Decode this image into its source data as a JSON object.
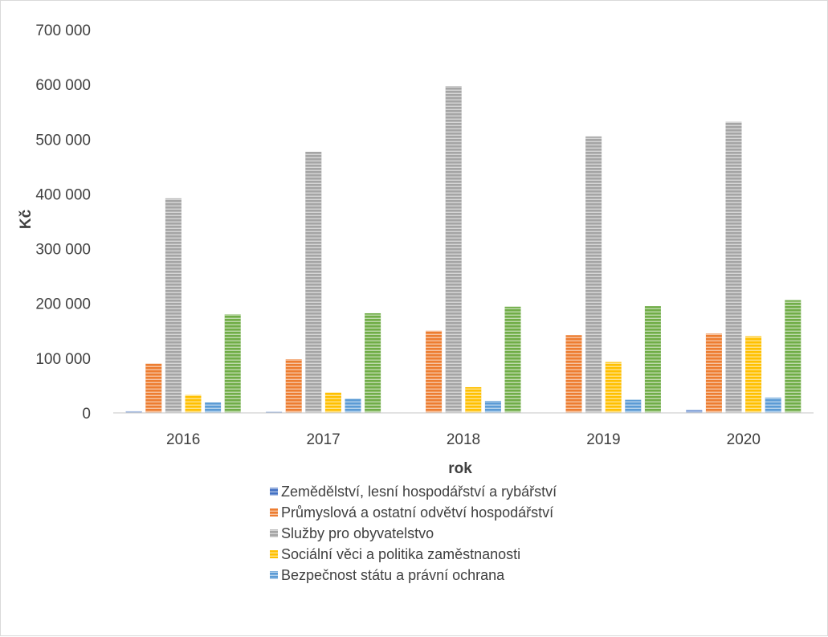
{
  "chart_data": {
    "type": "bar",
    "xlabel": "rok",
    "ylabel": "Kč",
    "ylim": [
      0,
      700000
    ],
    "y_ticks": [
      "0",
      "100 000",
      "200 000",
      "300 000",
      "400 000",
      "500 000",
      "600 000",
      "700 000"
    ],
    "categories": [
      "2016",
      "2017",
      "2018",
      "2019",
      "2020"
    ],
    "series": [
      {
        "name": "Zemědělství, lesní hospodářství a rybářství",
        "color": "#4472c4",
        "values": [
          3000,
          2000,
          0,
          0,
          5000
        ]
      },
      {
        "name": "Průmyslová a ostatní odvětví hospodářství",
        "color": "#ed7d31",
        "values": [
          90000,
          98000,
          150000,
          142000,
          145000
        ]
      },
      {
        "name": "Služby pro obyvatelstvo",
        "color": "#a5a5a5",
        "values": [
          392000,
          477000,
          597000,
          505000,
          532000
        ]
      },
      {
        "name": "Sociální věci a politika zaměstnanosti",
        "color": "#ffc000",
        "values": [
          33000,
          37000,
          47000,
          93000,
          140000
        ]
      },
      {
        "name": "Bezpečnost státu a právní ochrana",
        "color": "#5b9bd5",
        "values": [
          19000,
          26000,
          22000,
          24000,
          28000
        ]
      },
      {
        "color": "#70ad47",
        "values": [
          180000,
          182000,
          194000,
          195000,
          206000
        ]
      }
    ],
    "grid": false,
    "legend_position": "bottom"
  }
}
